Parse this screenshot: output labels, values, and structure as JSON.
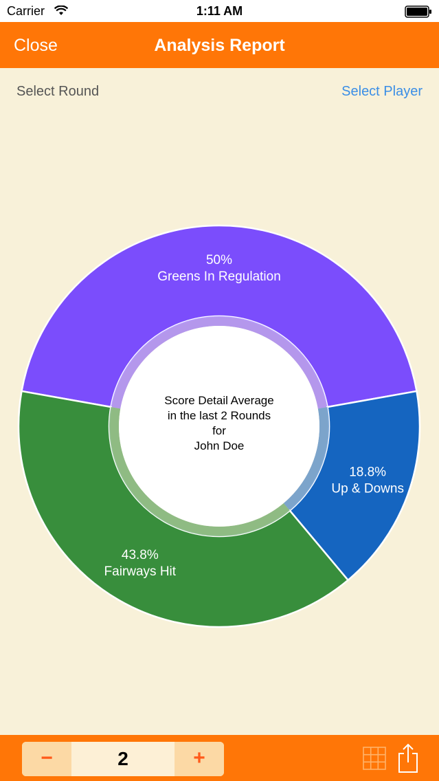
{
  "status_bar": {
    "carrier": "Carrier",
    "time": "1:11 AM",
    "icons": [
      "wifi-icon",
      "battery-icon"
    ]
  },
  "nav": {
    "close_label": "Close",
    "title": "Analysis Report"
  },
  "header": {
    "select_round_label": "Select Round",
    "select_player_label": "Select Player"
  },
  "center": {
    "lines": [
      "Score Detail Average",
      "in the last 2 Rounds",
      "for",
      "John Doe"
    ]
  },
  "chart_data": {
    "type": "pie",
    "categories": [
      "Greens In Regulation",
      "Up & Downs",
      "Fairways Hit"
    ],
    "values": [
      50,
      18.8,
      43.8
    ],
    "value_labels": [
      "50%",
      "18.8%",
      "43.8%"
    ],
    "colors": [
      "#7b4dfc",
      "#1565c0",
      "#388e3c"
    ],
    "title": "",
    "legend": "none"
  },
  "toolbar": {
    "stepper": {
      "minus_label": "−",
      "value": "2",
      "plus_label": "+"
    },
    "icons": [
      "grid-icon",
      "share-icon"
    ]
  },
  "colors": {
    "accent": "#ff7607",
    "background": "#f8f1d9",
    "link": "#3a8ee6"
  }
}
